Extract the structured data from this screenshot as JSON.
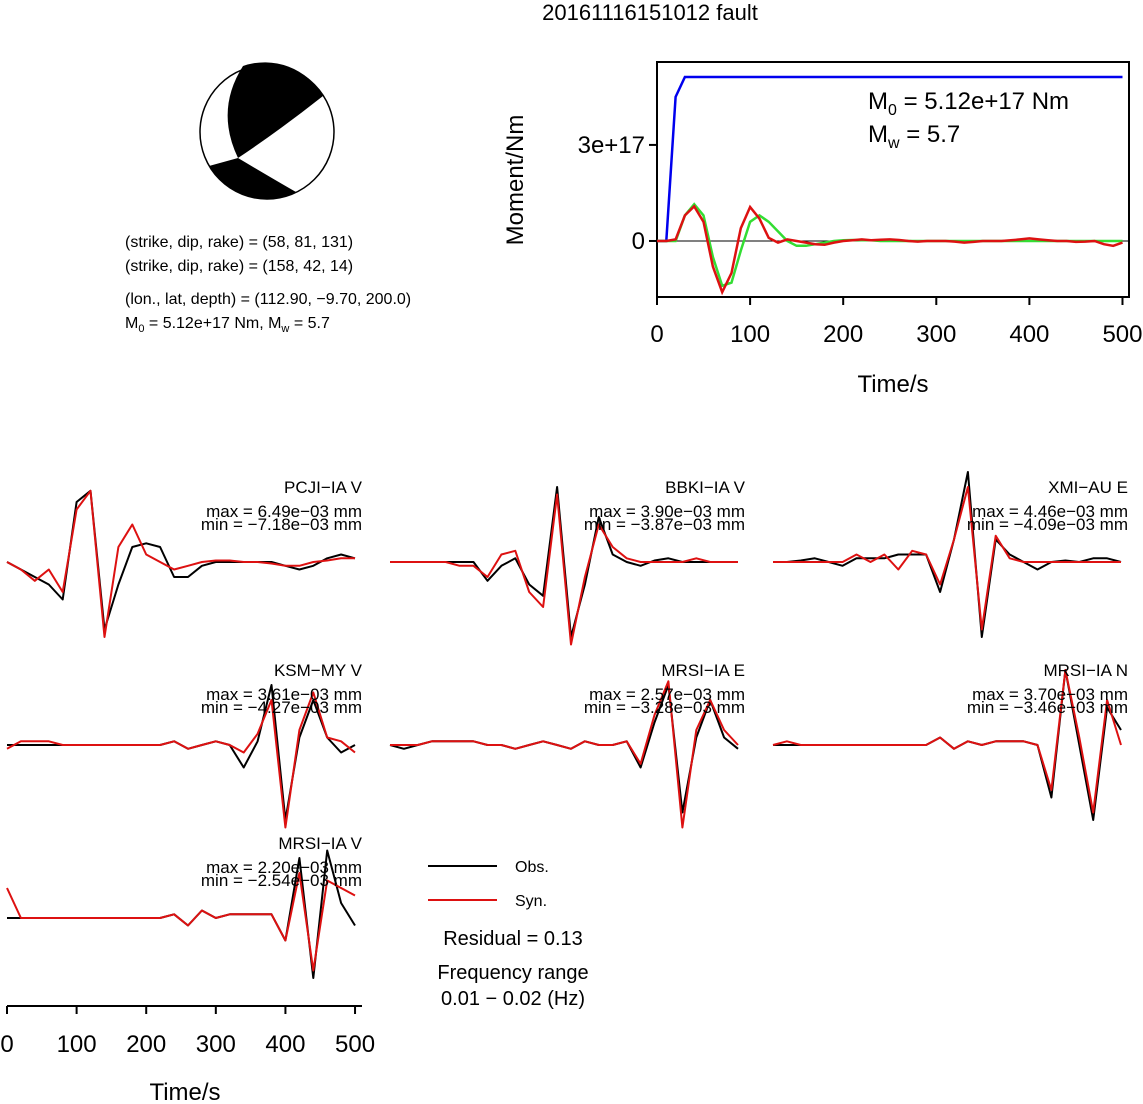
{
  "title": "20161116151012 fault",
  "focal_mechanism": {
    "planes": [
      "(strike, dip, rake) = (58, 81, 131)",
      "(strike, dip, rake) = (158, 42, 14)"
    ],
    "location": "(lon., lat, depth) = (112.90, −9.70, 200.0)",
    "moment_line": [
      "M",
      "0",
      " = 5.12e+17 Nm, M",
      "w",
      " = 5.7"
    ]
  },
  "chart_data": [
    {
      "type": "line",
      "ylabel": "Moment/Nm",
      "xlabel": "Time/s",
      "annotations": [
        [
          "M",
          "0",
          " = 5.12e+17 Nm"
        ],
        [
          "M",
          "w",
          " = 5.7"
        ]
      ],
      "xlim": [
        0,
        507
      ],
      "ylim": [
        -1.75e+17,
        5.59e+17
      ],
      "xticks": [
        0,
        100,
        200,
        300,
        400,
        500
      ],
      "yticks": [
        0,
        {
          "value": 3e+17,
          "label": "3e+17"
        }
      ],
      "x": [
        0,
        10,
        20,
        30,
        40,
        50,
        60,
        70,
        80,
        90,
        100,
        110,
        120,
        130,
        140,
        150,
        160,
        170,
        180,
        190,
        200,
        210,
        220,
        230,
        240,
        250,
        260,
        270,
        280,
        290,
        300,
        310,
        320,
        330,
        340,
        350,
        360,
        370,
        380,
        390,
        400,
        410,
        420,
        430,
        440,
        450,
        460,
        470,
        480,
        490,
        500
      ],
      "series": [
        {
          "color": "#0000ee",
          "values": [
            0,
            0,
            4.5e+17,
            5.12e+17,
            5.12e+17,
            5.12e+17,
            5.12e+17,
            5.12e+17,
            5.12e+17,
            5.12e+17,
            5.12e+17,
            5.12e+17,
            5.12e+17,
            5.12e+17,
            5.12e+17,
            5.12e+17,
            5.12e+17,
            5.12e+17,
            5.12e+17,
            5.12e+17,
            5.12e+17,
            5.12e+17,
            5.12e+17,
            5.12e+17,
            5.12e+17,
            5.12e+17,
            5.12e+17,
            5.12e+17,
            5.12e+17,
            5.12e+17,
            5.12e+17,
            5.12e+17,
            5.12e+17,
            5.12e+17,
            5.12e+17,
            5.12e+17,
            5.12e+17,
            5.12e+17,
            5.12e+17,
            5.12e+17,
            5.12e+17,
            5.12e+17,
            5.12e+17,
            5.12e+17,
            5.12e+17,
            5.12e+17,
            5.12e+17,
            5.12e+17,
            5.12e+17,
            5.12e+17,
            5.12e+17
          ]
        },
        {
          "color": "#33dd33",
          "values": [
            0,
            0,
            0,
            8e+16,
            1.15e+17,
            8e+16,
            -5e+16,
            -1.4e+17,
            -1.3e+17,
            -3e+16,
            6e+16,
            8e+16,
            6e+16,
            3e+16,
            0,
            -1.5e+16,
            -1.5e+16,
            -1e+16,
            -5000000000000000.0,
            0,
            2000000000000000.0,
            3000000000000000.0,
            2000000000000000.0,
            2000000000000000.0,
            0,
            0,
            0,
            0,
            0,
            0,
            0,
            0,
            0,
            0,
            0,
            0,
            0,
            0,
            0,
            0,
            0,
            0,
            0,
            0,
            0,
            0,
            0,
            0,
            0,
            0,
            0
          ]
        },
        {
          "color": "#dd1111",
          "values": [
            0,
            0,
            5000000000000000.0,
            8e+16,
            1.08e+17,
            6e+16,
            -8e+16,
            -1.6e+17,
            -1e+17,
            4e+16,
            1.06e+17,
            7e+16,
            1e+16,
            -5000000000000000.0,
            5000000000000000.0,
            0,
            -5000000000000000.0,
            -1e+16,
            -1.2e+16,
            -5000000000000000.0,
            0,
            2000000000000000.0,
            5000000000000000.0,
            2000000000000000.0,
            4000000000000000.0,
            5000000000000000.0,
            3000000000000000.0,
            0,
            -2000000000000000.0,
            0,
            0,
            0,
            -2000000000000000.0,
            -5000000000000000.0,
            -3000000000000000.0,
            0,
            0,
            0,
            2000000000000000.0,
            5000000000000000.0,
            8000000000000000.0,
            5000000000000000.0,
            2000000000000000.0,
            0,
            0,
            -3000000000000000.0,
            -2000000000000000.0,
            0,
            -1e+16,
            -1.5e+16,
            -5000000000000000.0
          ]
        }
      ]
    },
    {
      "type": "waveforms",
      "xlabel": "Time/s",
      "xlim": [
        0,
        510
      ],
      "xticks": [
        0,
        100,
        200,
        300,
        400,
        500
      ],
      "x": [
        0,
        20,
        40,
        60,
        80,
        100,
        120,
        140,
        160,
        180,
        200,
        220,
        240,
        260,
        280,
        300,
        320,
        340,
        360,
        380,
        400,
        420,
        440,
        460,
        480,
        500
      ],
      "legend": [
        {
          "name": "Obs.",
          "color": "#000000"
        },
        {
          "name": "Syn.",
          "color": "#dd1111"
        }
      ],
      "annotations": [
        "Residual = 0.13",
        "Frequency range",
        "0.01 − 0.02 (Hz)"
      ],
      "panels": [
        {
          "station": "PCJI−IA V",
          "max": "max = 6.49e−03 mm",
          "min": "min = −7.18e−03 mm",
          "obs": [
            0,
            -0.1,
            -0.2,
            -0.3,
            -0.5,
            0.8,
            0.95,
            -0.9,
            -0.3,
            0.2,
            0.25,
            0.2,
            -0.2,
            -0.2,
            -0.05,
            0,
            0,
            0,
            0,
            0,
            -0.05,
            -0.1,
            -0.05,
            0.05,
            0.1,
            0.05
          ],
          "syn": [
            0,
            -0.1,
            -0.25,
            -0.1,
            -0.4,
            0.7,
            0.95,
            -1.0,
            0.2,
            0.5,
            0.1,
            0,
            -0.1,
            -0.05,
            0,
            0.02,
            0.02,
            0,
            0,
            -0.02,
            -0.05,
            -0.05,
            0,
            0.02,
            0.05,
            0.05
          ]
        },
        {
          "station": "BBKI−IA V",
          "max": "max = 3.90e−03 mm",
          "min": "min = −3.87e−03 mm",
          "obs": [
            0,
            0,
            0,
            0,
            0,
            0,
            0,
            -0.25,
            -0.05,
            0.05,
            -0.3,
            -0.45,
            1.0,
            -1.0,
            -0.3,
            0.6,
            0.1,
            0,
            -0.05,
            0.02,
            0.05,
            0,
            0,
            0,
            0,
            0
          ],
          "syn": [
            0,
            0,
            0,
            0,
            0,
            -0.05,
            -0.05,
            -0.2,
            0.1,
            0.15,
            -0.4,
            -0.6,
            0.9,
            -1.1,
            -0.2,
            0.5,
            0.2,
            0.05,
            0,
            0,
            0,
            0,
            0.05,
            0,
            0,
            0
          ]
        },
        {
          "station": "XMI−AU E",
          "max": "max = 4.46e−03 mm",
          "min": "min = −4.09e−03 mm",
          "obs": [
            0,
            0,
            0.02,
            0.05,
            0,
            -0.05,
            0.05,
            0.05,
            0.05,
            0.1,
            0.1,
            0.1,
            -0.4,
            0.3,
            1.2,
            -1.0,
            0.3,
            0.1,
            0,
            -0.1,
            0,
            0.02,
            0,
            0.05,
            0.05,
            0
          ],
          "syn": [
            0,
            0,
            0,
            0,
            0,
            0,
            0.1,
            0,
            0.1,
            -0.1,
            0.15,
            0.1,
            -0.3,
            0.3,
            1.0,
            -0.9,
            0.35,
            0.05,
            0,
            0,
            0,
            0,
            0,
            0,
            0,
            0
          ]
        },
        {
          "station": "KSM−MY V",
          "max": "max = 3.61e−03 mm",
          "min": "min = −4.27e−03 mm",
          "obs": [
            0,
            0,
            0,
            0,
            0,
            0,
            0,
            0,
            0,
            0,
            0,
            0,
            0.05,
            -0.05,
            0,
            0.05,
            0,
            -0.3,
            0.05,
            0.8,
            -1.0,
            0.1,
            0.6,
            0.1,
            -0.1,
            0
          ],
          "syn": [
            -0.05,
            0.05,
            0.05,
            0.05,
            0,
            0,
            0,
            0,
            0,
            0,
            0,
            0,
            0.05,
            -0.05,
            0,
            0.05,
            0,
            -0.1,
            0.15,
            0.6,
            -1.1,
            0.2,
            0.7,
            0.1,
            0.05,
            -0.1
          ]
        },
        {
          "station": "MRSI−IA E",
          "max": "max = 2.57e−03 mm",
          "min": "min = −3.28e−03 mm",
          "obs": [
            0,
            -0.05,
            0,
            0.05,
            0.05,
            0.05,
            0.05,
            0,
            0,
            -0.05,
            0,
            0.05,
            0,
            -0.05,
            0.05,
            0,
            0,
            0.05,
            -0.3,
            0.3,
            0.8,
            -0.9,
            0.1,
            0.6,
            0.1,
            -0.05
          ],
          "syn": [
            0,
            0,
            0,
            0.05,
            0.05,
            0.05,
            0.05,
            0,
            0,
            -0.05,
            0,
            0.05,
            0,
            -0.05,
            0.05,
            0,
            0,
            0.05,
            -0.25,
            0.4,
            0.85,
            -1.1,
            0.2,
            0.6,
            0.2,
            0
          ]
        },
        {
          "station": "MRSI−IA N",
          "max": "max = 3.70e−03 mm",
          "min": "min = −3.46e−03 mm",
          "obs": [
            0,
            0,
            0,
            0,
            0,
            0,
            0,
            0,
            0,
            0,
            0,
            0,
            0.1,
            -0.05,
            0.05,
            0,
            0.05,
            0.05,
            0.05,
            0,
            -0.7,
            1.0,
            0,
            -1.0,
            0.5,
            0.2
          ],
          "syn": [
            0,
            0.05,
            0,
            0,
            0,
            0,
            0,
            0,
            0,
            0,
            0,
            0,
            0.1,
            -0.05,
            0.05,
            0,
            0.05,
            0.05,
            0.05,
            0,
            -0.6,
            1.0,
            0.1,
            -0.9,
            0.6,
            0
          ]
        },
        {
          "station": "MRSI−IA V",
          "max": "max = 2.20e−03 mm",
          "min": "min = −2.54e−03 mm",
          "obs": [
            0,
            0,
            0,
            0,
            0,
            0,
            0,
            0,
            0,
            0,
            0,
            0,
            0.05,
            -0.1,
            0.1,
            0,
            0.05,
            0.05,
            0.05,
            0.05,
            -0.3,
            0.8,
            -0.8,
            0.9,
            0.2,
            -0.1
          ],
          "syn": [
            0.4,
            0,
            0,
            0,
            0,
            0,
            0,
            0,
            0,
            0,
            0,
            0,
            0.05,
            -0.1,
            0.1,
            0,
            0.05,
            0.05,
            0.05,
            0.05,
            -0.3,
            0.6,
            -0.7,
            0.5,
            0.4,
            0.3
          ]
        }
      ]
    }
  ]
}
